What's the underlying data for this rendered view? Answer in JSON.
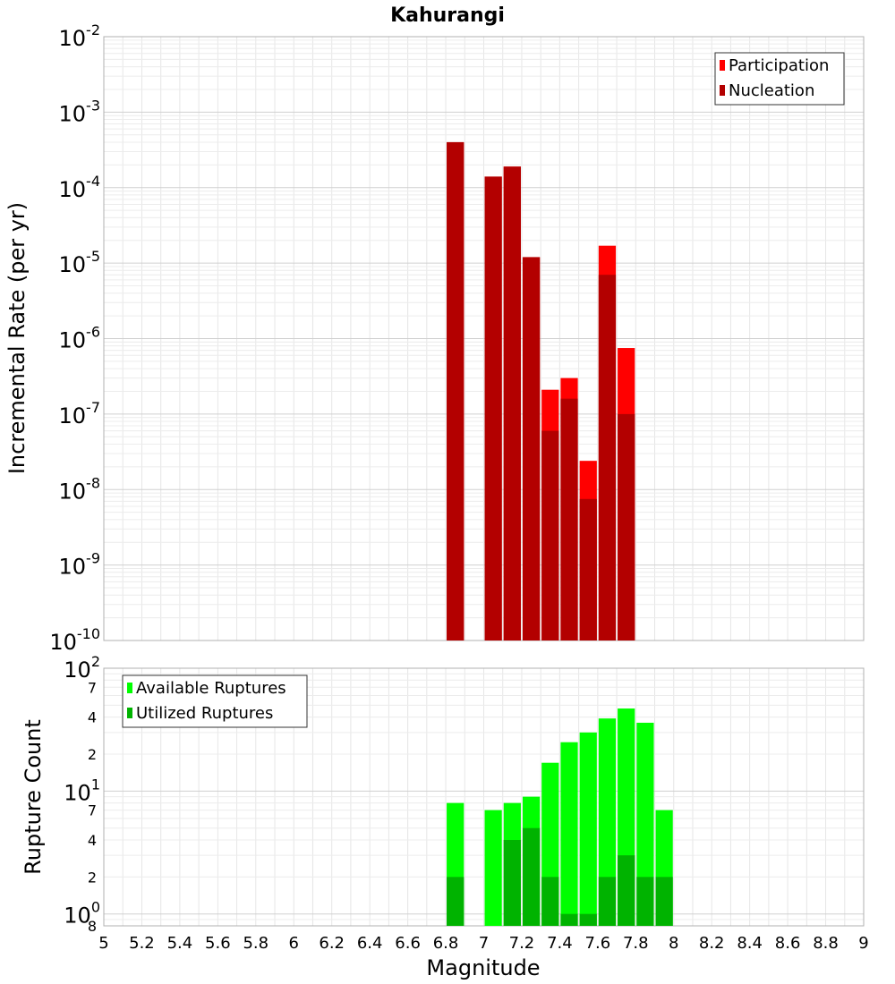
{
  "chart_data": [
    {
      "type": "bar",
      "title": "Kahurangi",
      "ylabel": "Incremental Rate (per yr)",
      "xlabel": "",
      "y_scale": "log",
      "ylim": [
        1e-10,
        0.01
      ],
      "xlim": [
        5,
        9
      ],
      "grid": true,
      "legend_position": "top-right",
      "y_ticks": [
        {
          "base": "10",
          "exp": "-10"
        },
        {
          "base": "10",
          "exp": "-9"
        },
        {
          "base": "10",
          "exp": "-8"
        },
        {
          "base": "10",
          "exp": "-7"
        },
        {
          "base": "10",
          "exp": "-6"
        },
        {
          "base": "10",
          "exp": "-5"
        },
        {
          "base": "10",
          "exp": "-4"
        },
        {
          "base": "10",
          "exp": "-3"
        },
        {
          "base": "10",
          "exp": "-2"
        }
      ],
      "x": [
        6.85,
        7.05,
        7.15,
        7.25,
        7.35,
        7.45,
        7.55,
        7.65,
        7.75
      ],
      "series": [
        {
          "name": "Participation",
          "color": "#ff0000",
          "values": [
            0.0004,
            0.00014,
            0.00019,
            1.2e-05,
            2.1e-07,
            3e-07,
            2.4e-08,
            1.7e-05,
            7.5e-07
          ]
        },
        {
          "name": "Nucleation",
          "color": "#b30000",
          "values": [
            0.0004,
            0.00014,
            0.00019,
            1.2e-05,
            6e-08,
            1.6e-07,
            7.5e-09,
            7e-06,
            1e-07
          ]
        }
      ]
    },
    {
      "type": "bar",
      "title": "",
      "ylabel": "Rupture Count",
      "xlabel": "Magnitude",
      "y_scale": "log",
      "ylim": [
        0.8,
        100
      ],
      "xlim": [
        5,
        9
      ],
      "grid": true,
      "legend_position": "top-left",
      "y_ticks": [
        {
          "value": 1,
          "base": "10",
          "exp": "0"
        },
        {
          "value": 10,
          "base": "10",
          "exp": "1"
        },
        {
          "value": 100,
          "base": "10",
          "exp": "2"
        }
      ],
      "y_minor_labels": [
        {
          "value": 0.8,
          "label": "8"
        },
        {
          "value": 2,
          "label": "2"
        },
        {
          "value": 4,
          "label": "4"
        },
        {
          "value": 7,
          "label": "7"
        },
        {
          "value": 20,
          "label": "2"
        },
        {
          "value": 40,
          "label": "4"
        },
        {
          "value": 70,
          "label": "7"
        }
      ],
      "x_ticks": [
        "5",
        "5.2",
        "5.4",
        "5.6",
        "5.8",
        "6",
        "6.2",
        "6.4",
        "6.6",
        "6.8",
        "7",
        "7.2",
        "7.4",
        "7.6",
        "7.8",
        "8",
        "8.2",
        "8.4",
        "8.6",
        "8.8",
        "9"
      ],
      "x": [
        6.85,
        7.05,
        7.15,
        7.25,
        7.35,
        7.45,
        7.55,
        7.65,
        7.75,
        7.85,
        7.95
      ],
      "series": [
        {
          "name": "Available Ruptures",
          "color": "#00ff00",
          "values": [
            8,
            7,
            8,
            9,
            17,
            25,
            30,
            39,
            47,
            36,
            7
          ]
        },
        {
          "name": "Utilized Ruptures",
          "color": "#00b300",
          "values": [
            2,
            0,
            4,
            5,
            2,
            1,
            1,
            2,
            3,
            2,
            2
          ]
        }
      ]
    }
  ]
}
